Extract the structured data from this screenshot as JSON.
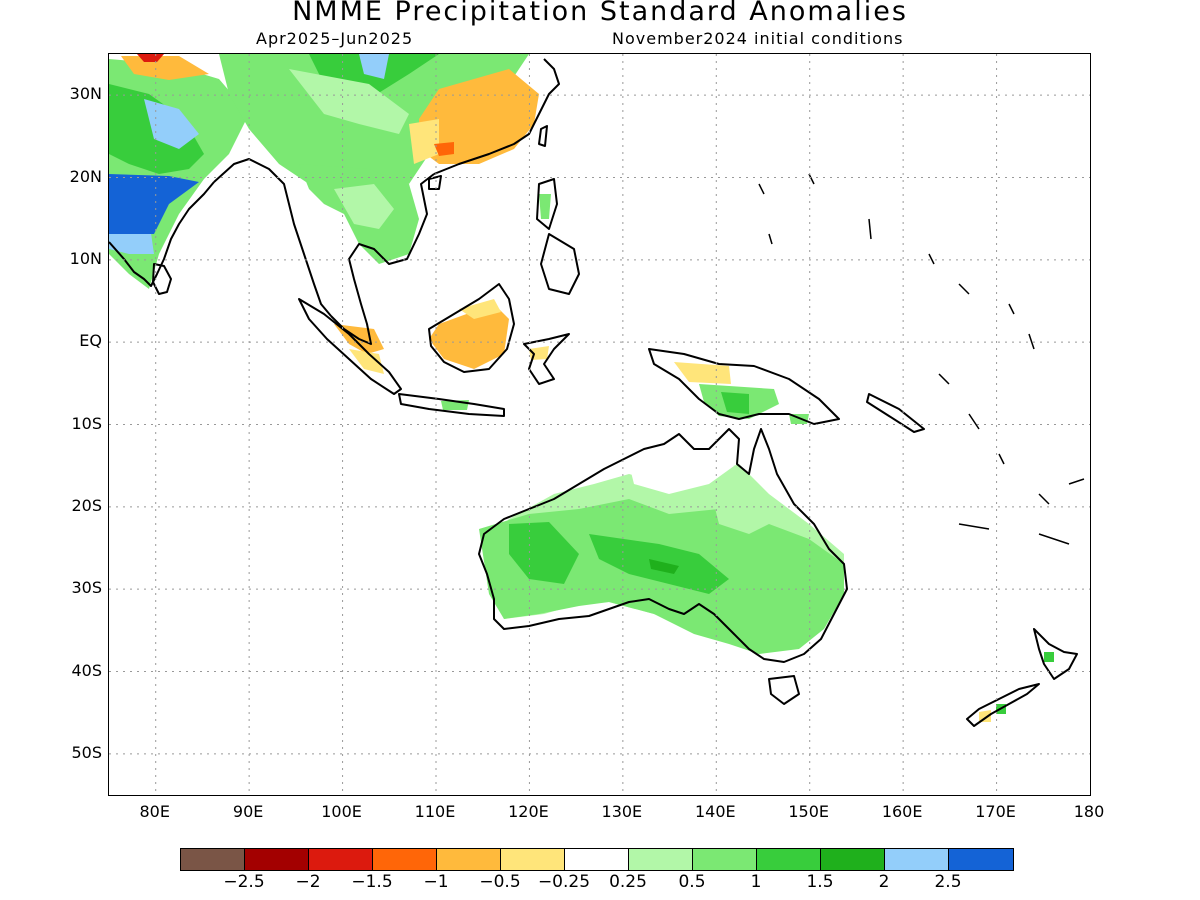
{
  "title": "NMME Precipitation Standard Anomalies",
  "subtitle_left": "Apr2025–Jun2025",
  "subtitle_right": "November2024 initial conditions",
  "map": {
    "lon_range": [
      75,
      180
    ],
    "lat_range": [
      -55,
      35
    ],
    "lat_ticks": [
      {
        "value": 30,
        "label": "30N"
      },
      {
        "value": 20,
        "label": "20N"
      },
      {
        "value": 10,
        "label": "10N"
      },
      {
        "value": 0,
        "label": "EQ"
      },
      {
        "value": -10,
        "label": "10S"
      },
      {
        "value": -20,
        "label": "20S"
      },
      {
        "value": -30,
        "label": "30S"
      },
      {
        "value": -40,
        "label": "40S"
      },
      {
        "value": -50,
        "label": "50S"
      }
    ],
    "lon_ticks": [
      {
        "value": 80,
        "label": "80E"
      },
      {
        "value": 90,
        "label": "90E"
      },
      {
        "value": 100,
        "label": "100E"
      },
      {
        "value": 110,
        "label": "110E"
      },
      {
        "value": 120,
        "label": "120E"
      },
      {
        "value": 130,
        "label": "130E"
      },
      {
        "value": 140,
        "label": "140E"
      },
      {
        "value": 150,
        "label": "150E"
      },
      {
        "value": 160,
        "label": "160E"
      },
      {
        "value": 170,
        "label": "170E"
      },
      {
        "value": 180,
        "label": "180"
      }
    ],
    "grid": "dotted"
  },
  "colorbar": {
    "colors": [
      "#7a5546",
      "#a30000",
      "#dc1a0e",
      "#ff6608",
      "#ffba3c",
      "#ffe57a",
      "#ffffff",
      "#b2f7a8",
      "#7be873",
      "#38cd3c",
      "#1fb01c",
      "#93cefa",
      "#1463d6"
    ],
    "labels": [
      "−2.5",
      "−2",
      "−1.5",
      "−1",
      "−0.5",
      "−0.25",
      "0.25",
      "0.5",
      "1",
      "1.5",
      "2",
      "2.5"
    ]
  }
}
